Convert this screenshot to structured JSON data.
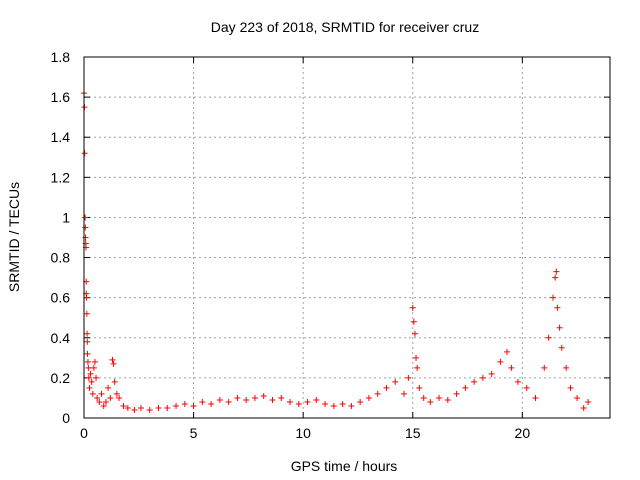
{
  "chart_data": {
    "type": "scatter",
    "title": "Day 223 of 2018, SRMTID for receiver cruz",
    "xlabel": "GPS time / hours",
    "ylabel": "SRMTID / TECUs",
    "xlim": [
      0,
      24
    ],
    "ylim": [
      0,
      1.8
    ],
    "xticks": [
      0,
      5,
      10,
      15,
      20
    ],
    "yticks": [
      0,
      0.2,
      0.4,
      0.6,
      0.8,
      1,
      1.2,
      1.4,
      1.6,
      1.8
    ],
    "grid": true,
    "marker": "+",
    "marker_color": "#ff0000",
    "series": [
      {
        "name": "SRMTID",
        "points": [
          [
            0.0,
            1.62
          ],
          [
            0.02,
            1.55
          ],
          [
            0.03,
            1.32
          ],
          [
            0.05,
            1.0
          ],
          [
            0.06,
            0.95
          ],
          [
            0.07,
            0.9
          ],
          [
            0.08,
            0.87
          ],
          [
            0.09,
            0.85
          ],
          [
            0.1,
            0.68
          ],
          [
            0.1,
            0.62
          ],
          [
            0.12,
            0.6
          ],
          [
            0.13,
            0.52
          ],
          [
            0.14,
            0.42
          ],
          [
            0.15,
            0.38
          ],
          [
            0.16,
            0.32
          ],
          [
            0.18,
            0.28
          ],
          [
            0.2,
            0.25
          ],
          [
            0.22,
            0.2
          ],
          [
            0.25,
            0.15
          ],
          [
            0.3,
            0.22
          ],
          [
            0.35,
            0.18
          ],
          [
            0.4,
            0.12
          ],
          [
            0.45,
            0.25
          ],
          [
            0.5,
            0.28
          ],
          [
            0.55,
            0.2
          ],
          [
            0.6,
            0.1
          ],
          [
            0.7,
            0.08
          ],
          [
            0.8,
            0.12
          ],
          [
            0.9,
            0.06
          ],
          [
            1.0,
            0.08
          ],
          [
            1.1,
            0.15
          ],
          [
            1.2,
            0.1
          ],
          [
            1.3,
            0.29
          ],
          [
            1.35,
            0.27
          ],
          [
            1.4,
            0.18
          ],
          [
            1.5,
            0.12
          ],
          [
            1.6,
            0.1
          ],
          [
            1.8,
            0.06
          ],
          [
            2.0,
            0.05
          ],
          [
            2.3,
            0.04
          ],
          [
            2.6,
            0.05
          ],
          [
            3.0,
            0.04
          ],
          [
            3.4,
            0.05
          ],
          [
            3.8,
            0.05
          ],
          [
            4.2,
            0.06
          ],
          [
            4.6,
            0.07
          ],
          [
            5.0,
            0.06
          ],
          [
            5.4,
            0.08
          ],
          [
            5.8,
            0.07
          ],
          [
            6.2,
            0.09
          ],
          [
            6.6,
            0.08
          ],
          [
            7.0,
            0.1
          ],
          [
            7.4,
            0.09
          ],
          [
            7.8,
            0.1
          ],
          [
            8.2,
            0.11
          ],
          [
            8.6,
            0.09
          ],
          [
            9.0,
            0.1
          ],
          [
            9.4,
            0.08
          ],
          [
            9.8,
            0.07
          ],
          [
            10.2,
            0.08
          ],
          [
            10.6,
            0.09
          ],
          [
            11.0,
            0.07
          ],
          [
            11.4,
            0.06
          ],
          [
            11.8,
            0.07
          ],
          [
            12.2,
            0.06
          ],
          [
            12.6,
            0.08
          ],
          [
            13.0,
            0.1
          ],
          [
            13.4,
            0.12
          ],
          [
            13.8,
            0.15
          ],
          [
            14.2,
            0.18
          ],
          [
            14.6,
            0.12
          ],
          [
            14.8,
            0.2
          ],
          [
            15.0,
            0.55
          ],
          [
            15.05,
            0.48
          ],
          [
            15.1,
            0.42
          ],
          [
            15.15,
            0.3
          ],
          [
            15.2,
            0.25
          ],
          [
            15.3,
            0.15
          ],
          [
            15.5,
            0.1
          ],
          [
            15.8,
            0.08
          ],
          [
            16.2,
            0.1
          ],
          [
            16.6,
            0.09
          ],
          [
            17.0,
            0.12
          ],
          [
            17.4,
            0.15
          ],
          [
            17.8,
            0.18
          ],
          [
            18.2,
            0.2
          ],
          [
            18.6,
            0.22
          ],
          [
            19.0,
            0.28
          ],
          [
            19.3,
            0.33
          ],
          [
            19.5,
            0.25
          ],
          [
            19.8,
            0.18
          ],
          [
            20.2,
            0.15
          ],
          [
            20.6,
            0.1
          ],
          [
            21.0,
            0.25
          ],
          [
            21.2,
            0.4
          ],
          [
            21.4,
            0.6
          ],
          [
            21.5,
            0.7
          ],
          [
            21.55,
            0.73
          ],
          [
            21.6,
            0.55
          ],
          [
            21.7,
            0.45
          ],
          [
            21.8,
            0.35
          ],
          [
            22.0,
            0.25
          ],
          [
            22.2,
            0.15
          ],
          [
            22.5,
            0.1
          ],
          [
            22.8,
            0.05
          ],
          [
            23.0,
            0.08
          ]
        ]
      }
    ]
  }
}
